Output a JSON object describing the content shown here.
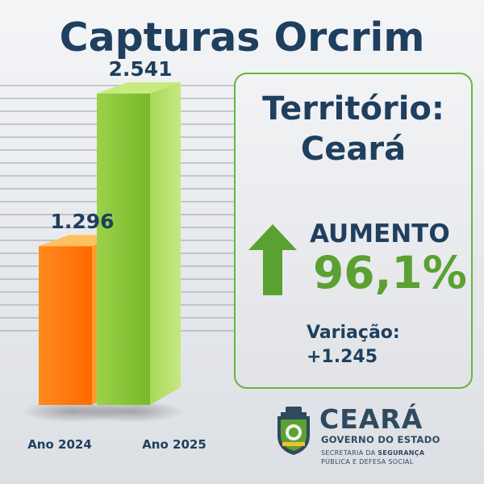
{
  "title": "Capturas Orcrim",
  "panel": {
    "territory_line1": "Território:",
    "territory_line2": "Ceará",
    "trend_label": "AUMENTO",
    "trend_value": "96,1%",
    "variation_label": "Variação:",
    "variation_value": "+1.245",
    "arrow_icon": "up-arrow-icon"
  },
  "logo": {
    "seal_icon": "ceara-coat-of-arms-icon",
    "brand": "CEARÁ",
    "government": "GOVERNO DO ESTADO",
    "secretariat_line1_prefix": "SECRETARIA DA ",
    "secretariat_line1_bold": "SEGURANÇA",
    "secretariat_line2": "PÚBLICA E DEFESA SOCIAL"
  },
  "colors": {
    "navy": "#1f3f5e",
    "green": "#5aa132",
    "orange": "#ff7a10",
    "lime": "#8cc63f"
  },
  "chart_data": {
    "type": "bar",
    "categories": [
      "Ano 2024",
      "Ano 2025"
    ],
    "values": [
      1296,
      2541
    ],
    "value_labels": [
      "1.296",
      "2.541"
    ],
    "title": "Capturas Orcrim",
    "xlabel": "",
    "ylabel": "",
    "ylim": [
      0,
      2541
    ],
    "grid": true
  }
}
